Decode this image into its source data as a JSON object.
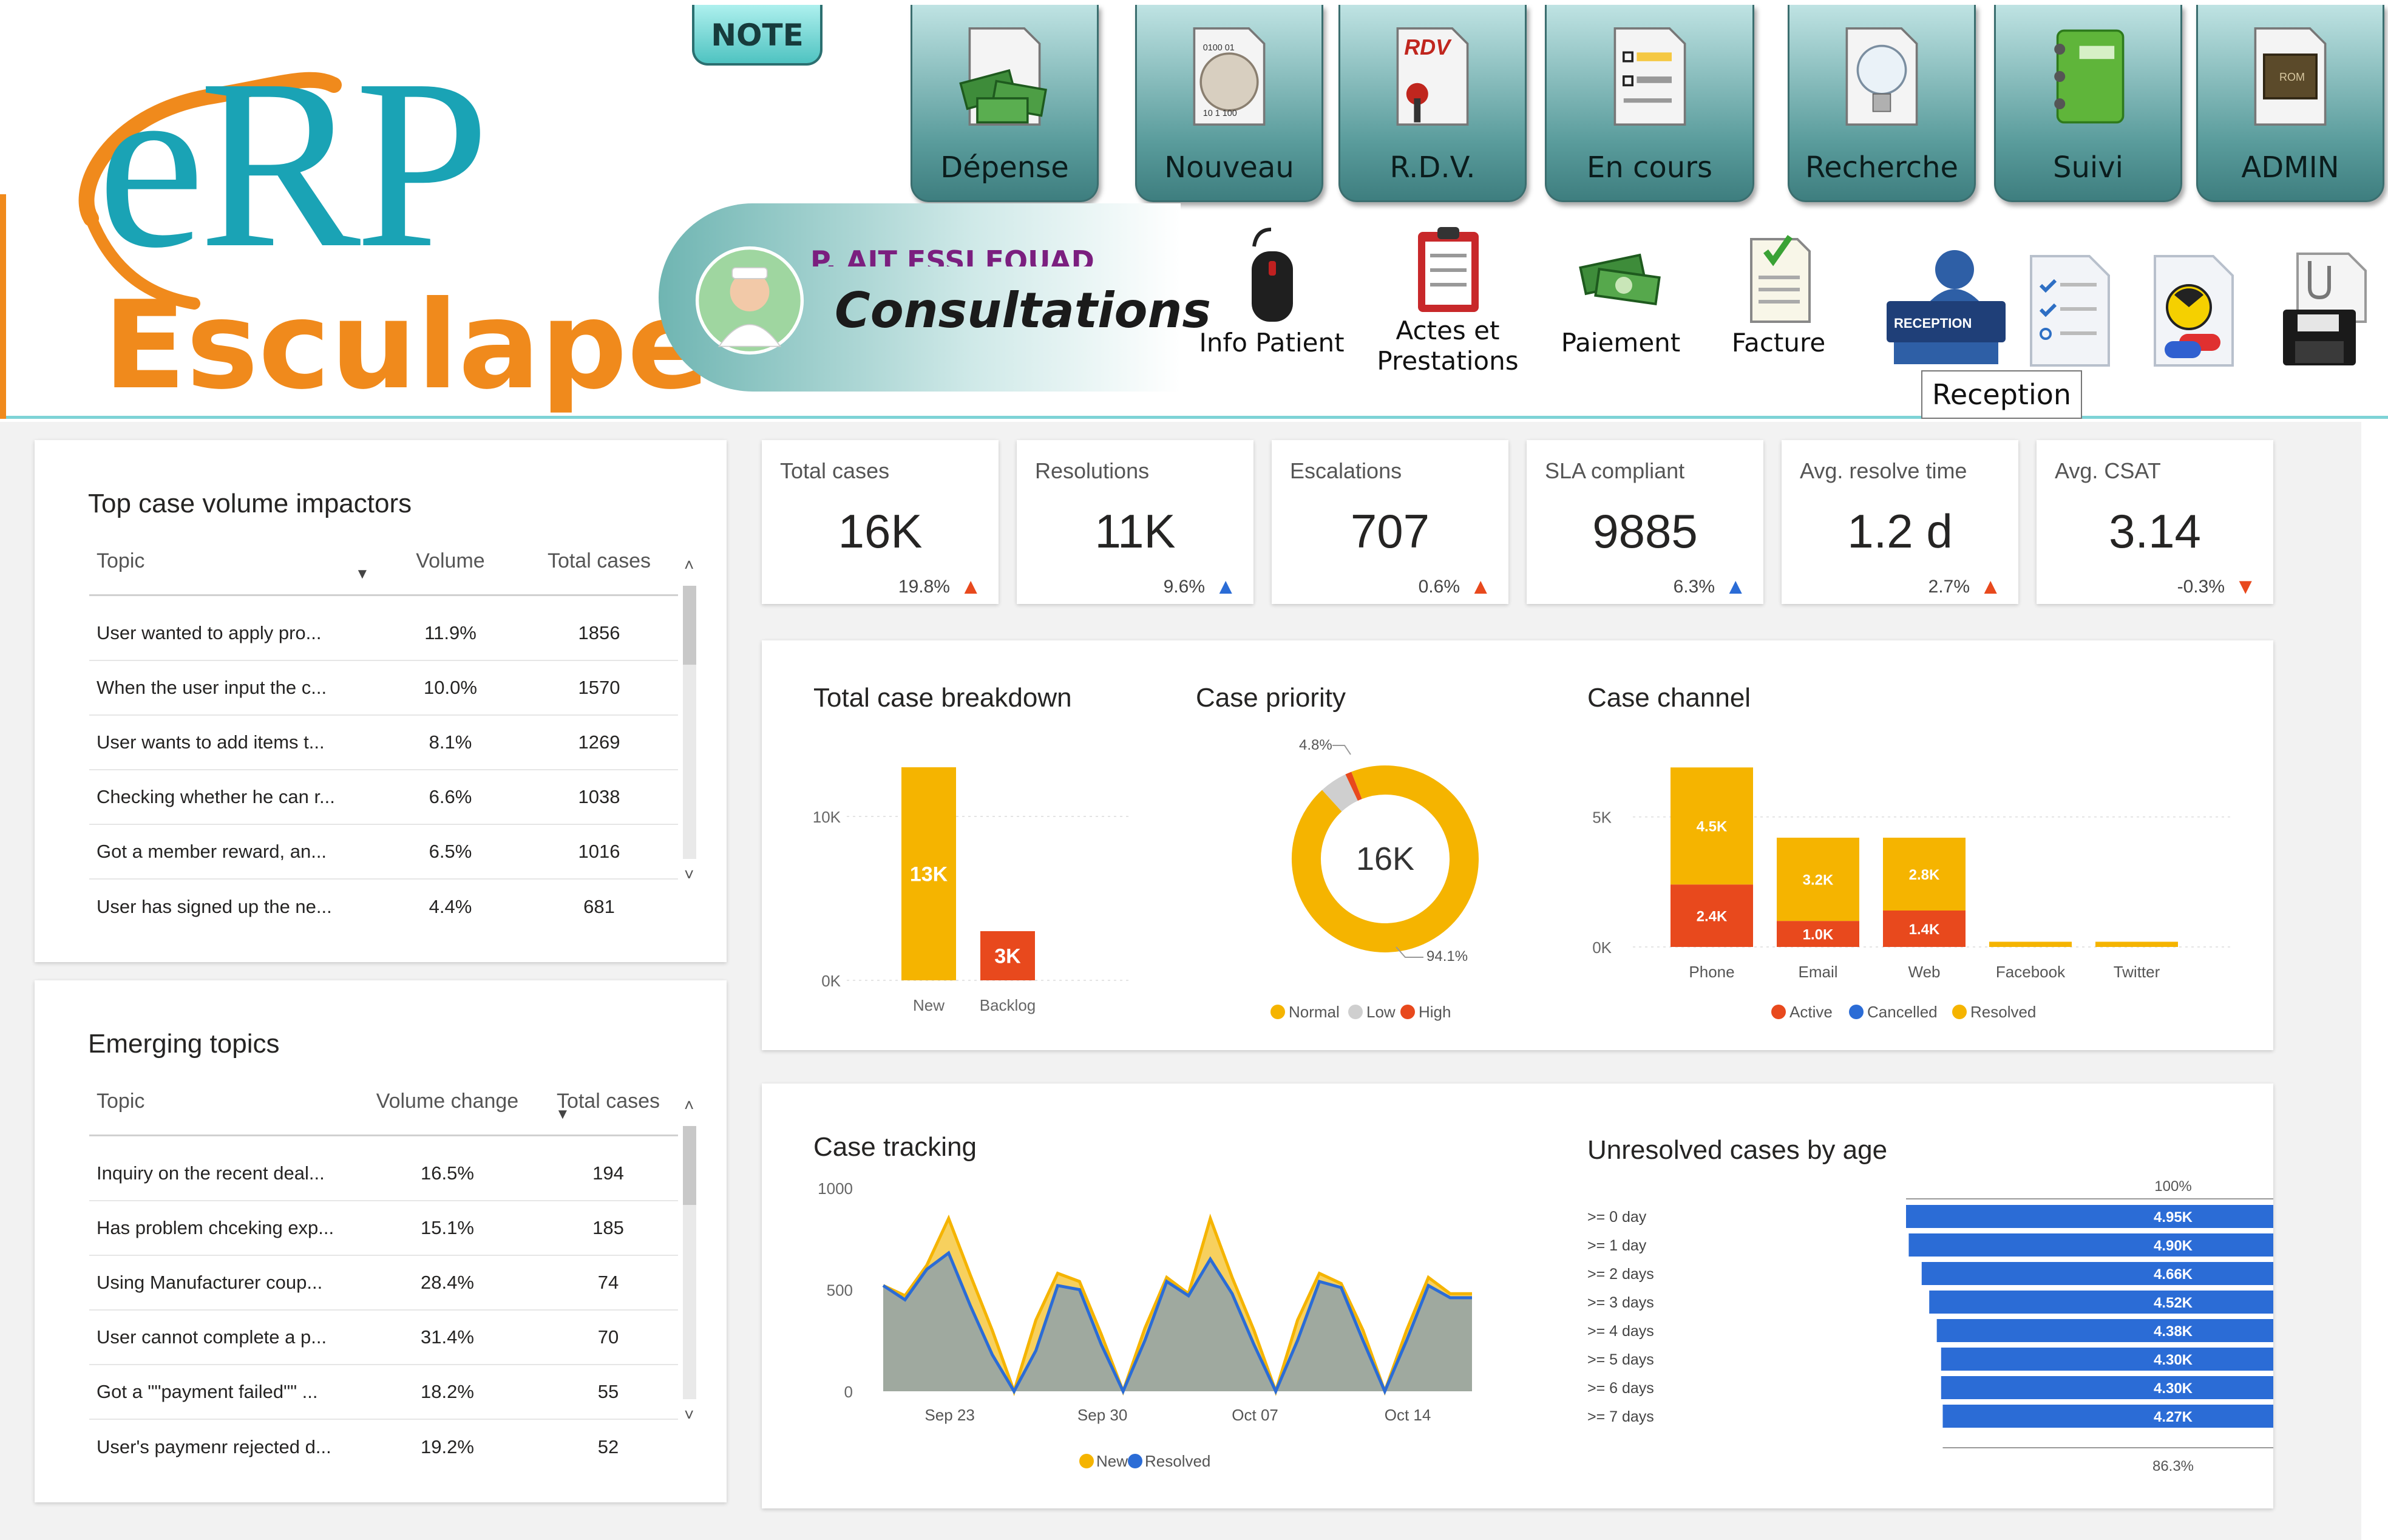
{
  "colors": {
    "teal": "#1aa3b5",
    "orange": "#f08a1c",
    "yellow": "#f5b400",
    "red": "#e8491d",
    "blue": "#2b6cd6",
    "grey": "#cfcfcf"
  },
  "app": {
    "logo_text_top": "eRP",
    "logo_text_bottom": "Esculape",
    "note_label": "NOTE",
    "toolbar": [
      {
        "label": "Dépense",
        "icon": "money-icon"
      },
      {
        "label": "Nouveau",
        "icon": "new-document-icon"
      },
      {
        "label": "R.D.V.",
        "icon": "appointment-icon"
      },
      {
        "label": "En cours",
        "icon": "checklist-icon"
      },
      {
        "label": "Recherche",
        "icon": "lightbulb-icon"
      },
      {
        "label": "Suivi",
        "icon": "notebook-icon"
      },
      {
        "label": "ADMIN",
        "icon": "chip-icon"
      }
    ],
    "patient_name_strike": "P. AIT ESSI FOUAD",
    "consult_title": "Consultations",
    "subbar": [
      {
        "label_1": "Info Patient",
        "label_2": "",
        "icon": "mouse-icon"
      },
      {
        "label_1": "Actes et",
        "label_2": "Prestations",
        "icon": "clipboard-icon"
      },
      {
        "label_1": "Paiement",
        "label_2": "",
        "icon": "cash-icon"
      },
      {
        "label_1": "Facture",
        "label_2": "",
        "icon": "invoice-icon"
      }
    ],
    "reception_sign": "RECEPTION",
    "tooltip": "Reception"
  },
  "impactors": {
    "title": "Top case volume impactors",
    "headers": [
      "Topic",
      "Volume",
      "Total cases"
    ],
    "rows": [
      {
        "topic": "User wanted to apply pro...",
        "volume": "11.9%",
        "total": "1856"
      },
      {
        "topic": "When the user input the c...",
        "volume": "10.0%",
        "total": "1570"
      },
      {
        "topic": "User wants to add items t...",
        "volume": "8.1%",
        "total": "1269"
      },
      {
        "topic": "Checking whether he can r...",
        "volume": "6.6%",
        "total": "1038"
      },
      {
        "topic": "Got a member reward, an...",
        "volume": "6.5%",
        "total": "1016"
      },
      {
        "topic": "User has signed up the ne...",
        "volume": "4.4%",
        "total": "681"
      }
    ]
  },
  "emerging": {
    "title": "Emerging topics",
    "headers": [
      "Topic",
      "Volume change",
      "Total cases"
    ],
    "rows": [
      {
        "topic": "Inquiry on the recent deal...",
        "volume": "16.5%",
        "total": "194"
      },
      {
        "topic": "Has problem chceking exp...",
        "volume": "15.1%",
        "total": "185"
      },
      {
        "topic": "Using Manufacturer coup...",
        "volume": "28.4%",
        "total": "74"
      },
      {
        "topic": "User cannot complete a p...",
        "volume": "31.4%",
        "total": "70"
      },
      {
        "topic": "Got a \"\"payment failed\"\" ...",
        "volume": "18.2%",
        "total": "55"
      },
      {
        "topic": "User's paymenr rejected d...",
        "volume": "19.2%",
        "total": "52"
      }
    ]
  },
  "kpis": [
    {
      "label": "Total cases",
      "value": "16K",
      "change": "19.8%",
      "dir": "up-red",
      "arrow": "▲"
    },
    {
      "label": "Resolutions",
      "value": "11K",
      "change": "9.6%",
      "dir": "up-blue",
      "arrow": "▲"
    },
    {
      "label": "Escalations",
      "value": "707",
      "change": "0.6%",
      "dir": "up-red",
      "arrow": "▲"
    },
    {
      "label": "SLA compliant",
      "value": "9885",
      "change": "6.3%",
      "dir": "up-blue",
      "arrow": "▲"
    },
    {
      "label": "Avg. resolve time",
      "value": "1.2 d",
      "change": "2.7%",
      "dir": "up-red",
      "arrow": "▲"
    },
    {
      "label": "Avg. CSAT",
      "value": "3.14",
      "change": "-0.3%",
      "dir": "down-red",
      "arrow": "▼"
    }
  ],
  "chart_data": [
    {
      "type": "bar",
      "title": "Total case breakdown",
      "categories": [
        "New",
        "Backlog"
      ],
      "values": [
        13000,
        3000
      ],
      "data_labels": [
        "13K",
        "3K"
      ],
      "ylim": [
        0,
        10000
      ],
      "yticks": [
        "0K",
        "10K"
      ],
      "colors": [
        "#f5b400",
        "#e8491d"
      ]
    },
    {
      "type": "pie",
      "title": "Case priority",
      "center_label": "16K",
      "slices": [
        {
          "name": "Normal",
          "value": 94.1,
          "label": "94.1%",
          "color": "#f5b400"
        },
        {
          "name": "Low",
          "value": 4.8,
          "label": "4.8%",
          "color": "#cfcfcf"
        },
        {
          "name": "High",
          "value": 1.1,
          "label": "",
          "color": "#e8491d"
        }
      ],
      "legend": [
        "Normal",
        "Low",
        "High"
      ]
    },
    {
      "type": "bar",
      "title": "Case channel",
      "stacked": true,
      "categories": [
        "Phone",
        "Email",
        "Web",
        "Facebook",
        "Twitter"
      ],
      "series": [
        {
          "name": "Active",
          "values": [
            2400,
            1000,
            1400,
            0,
            0
          ],
          "labels": [
            "2.4K",
            "1.0K",
            "1.4K",
            "",
            ""
          ],
          "color": "#e8491d"
        },
        {
          "name": "Cancelled",
          "values": [
            0,
            0,
            0,
            0,
            0
          ],
          "labels": [
            "",
            "",
            "",
            "",
            ""
          ],
          "color": "#2b6cd6"
        },
        {
          "name": "Resolved",
          "values": [
            4500,
            3200,
            2800,
            200,
            200
          ],
          "labels": [
            "4.5K",
            "3.2K",
            "2.8K",
            "",
            ""
          ],
          "color": "#f5b400"
        }
      ],
      "ylim": [
        0,
        7000
      ],
      "yticks": [
        "0K",
        "5K"
      ],
      "legend": [
        "Active",
        "Cancelled",
        "Resolved"
      ]
    },
    {
      "type": "area",
      "title": "Case tracking",
      "x_ticks": [
        "Sep 23",
        "Sep 30",
        "Oct 07",
        "Oct 14"
      ],
      "ylim": [
        0,
        1000
      ],
      "yticks": [
        "0",
        "500",
        "1000"
      ],
      "series": [
        {
          "name": "New",
          "color": "#f5b400",
          "values": [
            520,
            470,
            620,
            850,
            570,
            300,
            0,
            350,
            580,
            540,
            280,
            0,
            310,
            560,
            480,
            850,
            560,
            300,
            0,
            350,
            580,
            530,
            300,
            0,
            300,
            560,
            480,
            480
          ]
        },
        {
          "name": "Resolved",
          "color": "#2b6cd6",
          "values": [
            520,
            450,
            600,
            680,
            420,
            180,
            0,
            200,
            520,
            500,
            230,
            0,
            250,
            540,
            470,
            650,
            480,
            230,
            0,
            250,
            540,
            510,
            250,
            0,
            250,
            520,
            460,
            460
          ]
        }
      ],
      "legend": [
        "New",
        "Resolved"
      ]
    },
    {
      "type": "bar",
      "title": "Unresolved cases by age",
      "orientation": "funnel",
      "categories": [
        ">= 0 day",
        ">= 1 day",
        ">= 2 days",
        ">= 3 days",
        ">= 4 days",
        ">= 5 days",
        ">= 6 days",
        ">= 7 days"
      ],
      "values": [
        4950,
        4900,
        4660,
        4520,
        4380,
        4300,
        4300,
        4270
      ],
      "data_labels": [
        "4.95K",
        "4.90K",
        "4.66K",
        "4.52K",
        "4.38K",
        "4.30K",
        "4.30K",
        "4.27K"
      ],
      "top_label": "100%",
      "bottom_label": "86.3%",
      "color": "#2b6cd6"
    }
  ]
}
